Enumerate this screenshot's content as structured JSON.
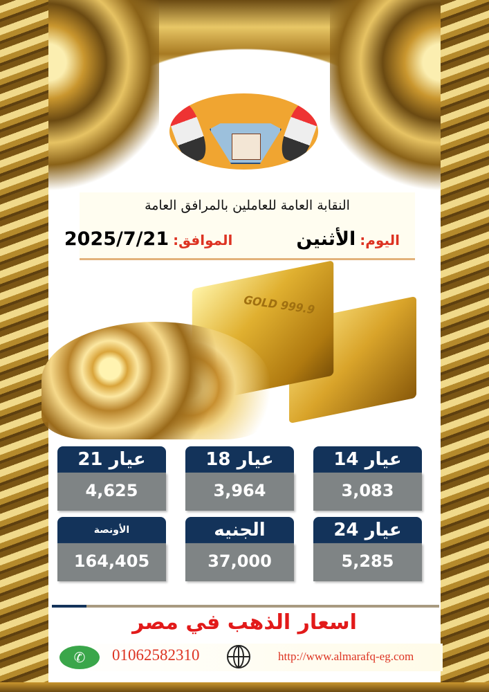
{
  "logo": {
    "lettering": "النقابة العامة للعاملين بالمرافق العامة"
  },
  "header": {
    "organization": "النقابة العامة للعاملين بالمرافق العامة",
    "day_label": "اليوم:",
    "day_value": "الأثنين",
    "date_label": "الموافق:",
    "date_value": "2025/7/21"
  },
  "image": {
    "bar_lettering": "GOLD 999.9"
  },
  "prices": [
    {
      "label": "عيار 21",
      "value": "4,625"
    },
    {
      "label": "عيار 18",
      "value": "3,964"
    },
    {
      "label": "عيار 14",
      "value": "3,083"
    },
    {
      "label": "الأونصة",
      "value": "164,405"
    },
    {
      "label": "الجنيه",
      "value": "37,000"
    },
    {
      "label": "عيار 24",
      "value": "5,285"
    }
  ],
  "title": "اسعار الذهب في مصر",
  "footer": {
    "phone": "01062582310",
    "website": "http://www.almarafq-eg.com",
    "phone_icon": "whatsapp-icon",
    "web_icon": "globe-icon"
  },
  "colors": {
    "card_header": "#13335a",
    "card_body": "#7f8485",
    "accent_red": "#e21a1a",
    "logo_bg": "#f0a531"
  }
}
